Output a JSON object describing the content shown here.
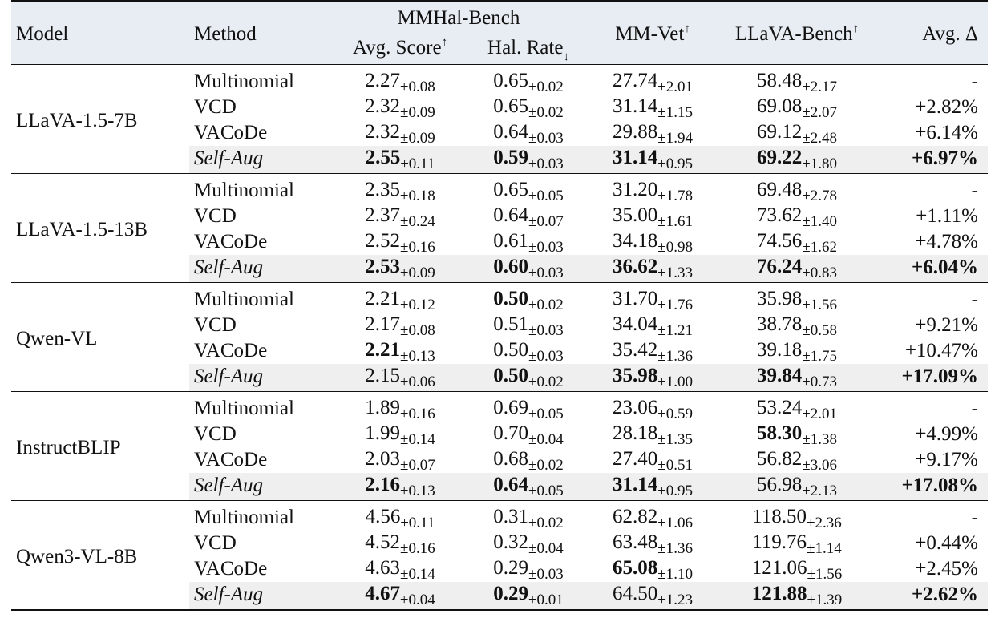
{
  "header": {
    "model": "Model",
    "method": "Method",
    "mmhal": "MMHal-Bench",
    "avg_score": "Avg. Score",
    "avg_score_mark": "↑",
    "hal_rate": "Hal. Rate",
    "hal_rate_mark": "↓",
    "mmvet": "MM-Vet",
    "mmvet_mark": "↑",
    "llava": "LLaVA-Bench",
    "llava_mark": "↑",
    "avg_delta": "Avg. Δ"
  },
  "groups": [
    {
      "model": "LLaVA-1.5-7B",
      "rows": [
        {
          "method": "Multinomial",
          "s": "2.27",
          "s_sd": "±0.08",
          "s_b": false,
          "h": "0.65",
          "h_sd": "±0.02",
          "h_b": false,
          "v": "27.74",
          "v_sd": "±2.01",
          "v_b": false,
          "l": "58.48",
          "l_sd": "±2.17",
          "l_b": false,
          "d": "-",
          "d_b": false
        },
        {
          "method": "VCD",
          "s": "2.32",
          "s_sd": "±0.09",
          "s_b": false,
          "h": "0.65",
          "h_sd": "±0.02",
          "h_b": false,
          "v": "31.14",
          "v_sd": "±1.15",
          "v_b": false,
          "l": "69.08",
          "l_sd": "±2.07",
          "l_b": false,
          "d": "+2.82%",
          "d_b": false
        },
        {
          "method": "VACoDe",
          "s": "2.32",
          "s_sd": "±0.09",
          "s_b": false,
          "h": "0.64",
          "h_sd": "±0.03",
          "h_b": false,
          "v": "29.88",
          "v_sd": "±1.94",
          "v_b": false,
          "l": "69.12",
          "l_sd": "±2.48",
          "l_b": false,
          "d": "+6.14%",
          "d_b": false
        },
        {
          "method": "Self-Aug",
          "s": "2.55",
          "s_sd": "±0.11",
          "s_b": true,
          "h": "0.59",
          "h_sd": "±0.03",
          "h_b": true,
          "v": "31.14",
          "v_sd": "±0.95",
          "v_b": true,
          "l": "69.22",
          "l_sd": "±1.80",
          "l_b": true,
          "d": "+6.97%",
          "d_b": true
        }
      ]
    },
    {
      "model": "LLaVA-1.5-13B",
      "rows": [
        {
          "method": "Multinomial",
          "s": "2.35",
          "s_sd": "±0.18",
          "s_b": false,
          "h": "0.65",
          "h_sd": "±0.05",
          "h_b": false,
          "v": "31.20",
          "v_sd": "±1.78",
          "v_b": false,
          "l": "69.48",
          "l_sd": "±2.78",
          "l_b": false,
          "d": "-",
          "d_b": false
        },
        {
          "method": "VCD",
          "s": "2.37",
          "s_sd": "±0.24",
          "s_b": false,
          "h": "0.64",
          "h_sd": "±0.07",
          "h_b": false,
          "v": "35.00",
          "v_sd": "±1.61",
          "v_b": false,
          "l": "73.62",
          "l_sd": "±1.40",
          "l_b": false,
          "d": "+1.11%",
          "d_b": false
        },
        {
          "method": "VACoDe",
          "s": "2.52",
          "s_sd": "±0.16",
          "s_b": false,
          "h": "0.61",
          "h_sd": "±0.03",
          "h_b": false,
          "v": "34.18",
          "v_sd": "±0.98",
          "v_b": false,
          "l": "74.56",
          "l_sd": "±1.62",
          "l_b": false,
          "d": "+4.78%",
          "d_b": false
        },
        {
          "method": "Self-Aug",
          "s": "2.53",
          "s_sd": "±0.09",
          "s_b": true,
          "h": "0.60",
          "h_sd": "±0.03",
          "h_b": true,
          "v": "36.62",
          "v_sd": "±1.33",
          "v_b": true,
          "l": "76.24",
          "l_sd": "±0.83",
          "l_b": true,
          "d": "+6.04%",
          "d_b": true
        }
      ]
    },
    {
      "model": "Qwen-VL",
      "rows": [
        {
          "method": "Multinomial",
          "s": "2.21",
          "s_sd": "±0.12",
          "s_b": false,
          "h": "0.50",
          "h_sd": "±0.02",
          "h_b": true,
          "v": "31.70",
          "v_sd": "±1.76",
          "v_b": false,
          "l": "35.98",
          "l_sd": "±1.56",
          "l_b": false,
          "d": "-",
          "d_b": false
        },
        {
          "method": "VCD",
          "s": "2.17",
          "s_sd": "±0.08",
          "s_b": false,
          "h": "0.51",
          "h_sd": "±0.03",
          "h_b": false,
          "v": "34.04",
          "v_sd": "±1.21",
          "v_b": false,
          "l": "38.78",
          "l_sd": "±0.58",
          "l_b": false,
          "d": "+9.21%",
          "d_b": false
        },
        {
          "method": "VACoDe",
          "s": "2.21",
          "s_sd": "±0.13",
          "s_b": true,
          "h": "0.50",
          "h_sd": "±0.03",
          "h_b": false,
          "v": "35.42",
          "v_sd": "±1.36",
          "v_b": false,
          "l": "39.18",
          "l_sd": "±1.75",
          "l_b": false,
          "d": "+10.47%",
          "d_b": false
        },
        {
          "method": "Self-Aug",
          "s": "2.15",
          "s_sd": "±0.06",
          "s_b": false,
          "h": "0.50",
          "h_sd": "±0.02",
          "h_b": true,
          "v": "35.98",
          "v_sd": "±1.00",
          "v_b": true,
          "l": "39.84",
          "l_sd": "±0.73",
          "l_b": true,
          "d": "+17.09%",
          "d_b": true
        }
      ]
    },
    {
      "model": "InstructBLIP",
      "rows": [
        {
          "method": "Multinomial",
          "s": "1.89",
          "s_sd": "±0.16",
          "s_b": false,
          "h": "0.69",
          "h_sd": "±0.05",
          "h_b": false,
          "v": "23.06",
          "v_sd": "±0.59",
          "v_b": false,
          "l": "53.24",
          "l_sd": "±2.01",
          "l_b": false,
          "d": "-",
          "d_b": false
        },
        {
          "method": "VCD",
          "s": "1.99",
          "s_sd": "±0.14",
          "s_b": false,
          "h": "0.70",
          "h_sd": "±0.04",
          "h_b": false,
          "v": "28.18",
          "v_sd": "±1.35",
          "v_b": false,
          "l": "58.30",
          "l_sd": "±1.38",
          "l_b": true,
          "d": "+4.99%",
          "d_b": false
        },
        {
          "method": "VACoDe",
          "s": "2.03",
          "s_sd": "±0.07",
          "s_b": false,
          "h": "0.68",
          "h_sd": "±0.02",
          "h_b": false,
          "v": "27.40",
          "v_sd": "±0.51",
          "v_b": false,
          "l": "56.82",
          "l_sd": "±3.06",
          "l_b": false,
          "d": "+9.17%",
          "d_b": false
        },
        {
          "method": "Self-Aug",
          "s": "2.16",
          "s_sd": "±0.13",
          "s_b": true,
          "h": "0.64",
          "h_sd": "±0.05",
          "h_b": true,
          "v": "31.14",
          "v_sd": "±0.95",
          "v_b": true,
          "l": "56.98",
          "l_sd": "±2.13",
          "l_b": false,
          "d": "+17.08%",
          "d_b": true
        }
      ]
    },
    {
      "model": "Qwen3-VL-8B",
      "rows": [
        {
          "method": "Multinomial",
          "s": "4.56",
          "s_sd": "±0.11",
          "s_b": false,
          "h": "0.31",
          "h_sd": "±0.02",
          "h_b": false,
          "v": "62.82",
          "v_sd": "±1.06",
          "v_b": false,
          "l": "118.50",
          "l_sd": "±2.36",
          "l_b": false,
          "d": "-",
          "d_b": false
        },
        {
          "method": "VCD",
          "s": "4.52",
          "s_sd": "±0.16",
          "s_b": false,
          "h": "0.32",
          "h_sd": "±0.04",
          "h_b": false,
          "v": "63.48",
          "v_sd": "±1.36",
          "v_b": false,
          "l": "119.76",
          "l_sd": "±1.14",
          "l_b": false,
          "d": "+0.44%",
          "d_b": false
        },
        {
          "method": "VACoDe",
          "s": "4.63",
          "s_sd": "±0.14",
          "s_b": false,
          "h": "0.29",
          "h_sd": "±0.03",
          "h_b": false,
          "v": "65.08",
          "v_sd": "±1.10",
          "v_b": true,
          "l": "121.06",
          "l_sd": "±1.56",
          "l_b": false,
          "d": "+2.45%",
          "d_b": false
        },
        {
          "method": "Self-Aug",
          "s": "4.67",
          "s_sd": "±0.04",
          "s_b": true,
          "h": "0.29",
          "h_sd": "±0.01",
          "h_b": true,
          "v": "64.50",
          "v_sd": "±1.23",
          "v_b": false,
          "l": "121.88",
          "l_sd": "±1.39",
          "l_b": true,
          "d": "+2.62%",
          "d_b": true
        }
      ]
    }
  ]
}
